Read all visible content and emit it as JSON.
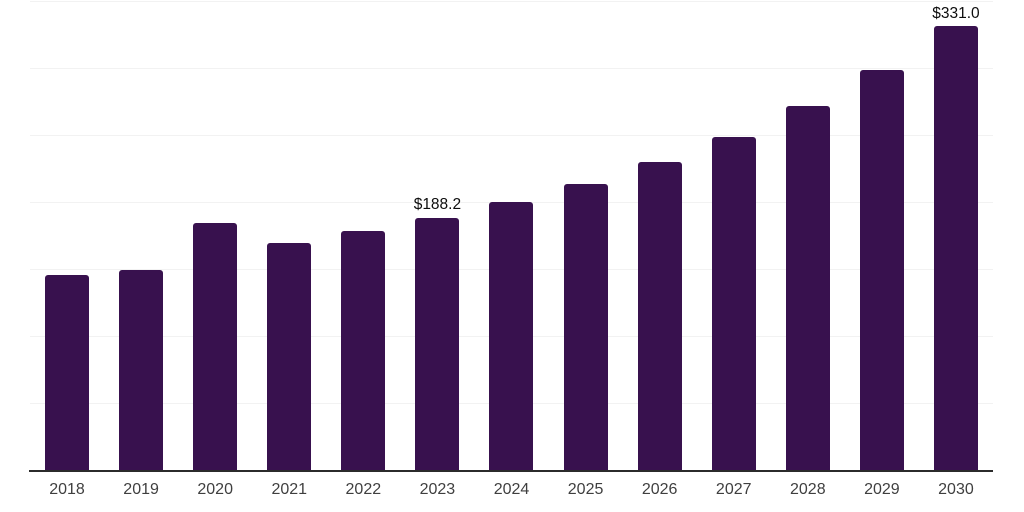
{
  "chart_data": {
    "type": "bar",
    "title": "",
    "xlabel": "",
    "ylabel": "",
    "categories": [
      "2018",
      "2019",
      "2020",
      "2021",
      "2022",
      "2023",
      "2024",
      "2025",
      "2026",
      "2027",
      "2028",
      "2029",
      "2030"
    ],
    "values": [
      145.9,
      149.0,
      184.1,
      169.7,
      178.4,
      188.2,
      199.8,
      213.4,
      229.6,
      248.3,
      271.6,
      298.5,
      331.0
    ],
    "bar_labels": [
      "",
      "",
      "",
      "",
      "",
      "$188.2",
      "",
      "",
      "",
      "",
      "",
      "",
      "$331.0"
    ],
    "ylim": [
      0,
      350
    ],
    "grid_step": 50,
    "grid": "horizontal",
    "y_axis_labels_visible": false,
    "legend_position": "none"
  },
  "colors": {
    "background": "#ffffff",
    "bar": "#38114e",
    "gridline": "#f2f2f2",
    "axis_line": "#2b2b2b",
    "tick_label": "#3f3f3f",
    "data_label": "#0d0d0d"
  }
}
